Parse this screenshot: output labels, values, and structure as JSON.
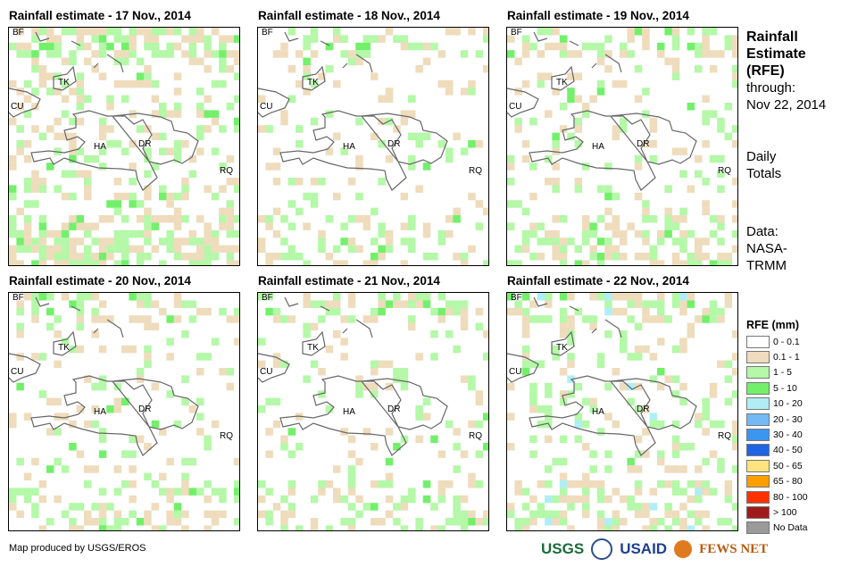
{
  "panels": [
    {
      "title": "Rainfall estimate - 17 Nov., 2014",
      "seed": 17,
      "wet": 0.38
    },
    {
      "title": "Rainfall estimate - 18 Nov., 2014",
      "seed": 18,
      "wet": 0.2
    },
    {
      "title": "Rainfall estimate - 19 Nov., 2014",
      "seed": 19,
      "wet": 0.25
    },
    {
      "title": "Rainfall estimate - 20 Nov., 2014",
      "seed": 20,
      "wet": 0.22
    },
    {
      "title": "Rainfall estimate - 21 Nov., 2014",
      "seed": 21,
      "wet": 0.22
    },
    {
      "title": "Rainfall estimate - 22 Nov., 2014",
      "seed": 22,
      "wet": 0.3
    }
  ],
  "map_labels": {
    "bf": "BF",
    "tk": "TK",
    "cu": "CU",
    "ha": "HA",
    "dr": "DR",
    "rq": "RQ"
  },
  "side": {
    "title1": "Rainfall",
    "title2": "Estimate",
    "title3": "(RFE)",
    "through": "through:",
    "date": "Nov 22, 2014",
    "daily1": "Daily",
    "daily2": "Totals",
    "data1": "Data:",
    "data2": "NASA-",
    "data3": "TRMM"
  },
  "legend": {
    "title": "RFE (mm)",
    "items": [
      {
        "label": "0 - 0.1",
        "color": "#ffffff"
      },
      {
        "label": "0.1 - 1",
        "color": "#eedcbc"
      },
      {
        "label": "1 - 5",
        "color": "#b4f8a8"
      },
      {
        "label": "5 - 10",
        "color": "#72f06a"
      },
      {
        "label": "10 - 20",
        "color": "#b0eef6"
      },
      {
        "label": "20 - 30",
        "color": "#74b8f6"
      },
      {
        "label": "30 - 40",
        "color": "#3c96f0"
      },
      {
        "label": "40 - 50",
        "color": "#1e64e4"
      },
      {
        "label": "50 - 65",
        "color": "#fee47e"
      },
      {
        "label": "65 - 80",
        "color": "#fe9e00"
      },
      {
        "label": "80 - 100",
        "color": "#fe3200"
      },
      {
        "label": "> 100",
        "color": "#a01c1c"
      },
      {
        "label": "No Data",
        "color": "#9a9a9a"
      }
    ]
  },
  "footer": {
    "credit": "Map produced by USGS/EROS",
    "logo1": "USGS",
    "logo2": "USAID",
    "logo3": "FEWS NET"
  }
}
